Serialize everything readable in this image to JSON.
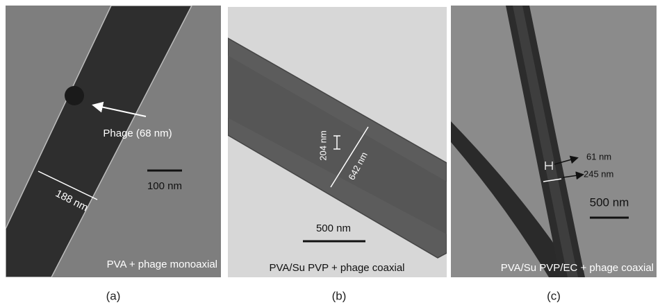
{
  "panels": [
    {
      "caption": "(a)",
      "label": "PVA + phage monoaxial",
      "annotations": [
        "Phage (68 nm)",
        "188 nm"
      ],
      "scale_bar": "100 nm"
    },
    {
      "caption": "(b)",
      "label": "PVA/Su PVP + phage coaxial",
      "annotations": [
        "204 nm",
        "642 nm"
      ],
      "scale_bar": "500 nm"
    },
    {
      "caption": "(c)",
      "label": "PVA/Su PVP/EC + phage coaxial",
      "annotations": [
        "61 nm",
        "245 nm"
      ],
      "scale_bar": "500 nm"
    }
  ]
}
